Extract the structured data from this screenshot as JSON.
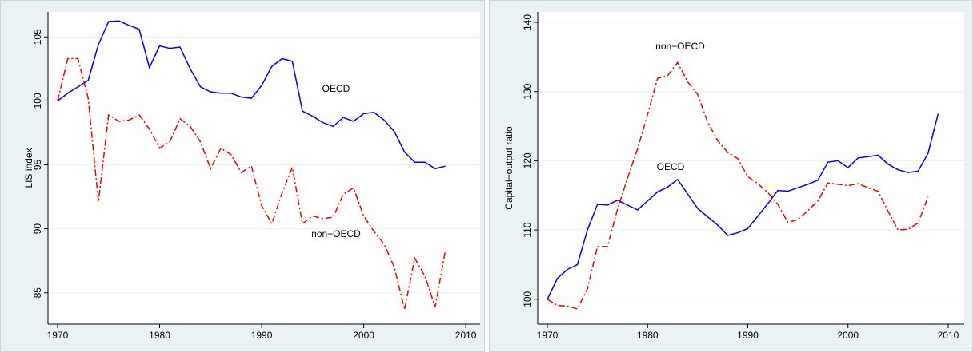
{
  "chart_data": [
    {
      "type": "line",
      "ylabel": "LIS index",
      "xlim": [
        1969.06,
        2011.4
      ],
      "xticks": [
        1970,
        1980,
        1990,
        2000,
        2010
      ],
      "ylim": [
        82.55,
        106.95
      ],
      "yticks": [
        85,
        90,
        95,
        100,
        105
      ],
      "annotations": [
        "OECD",
        "non−OECD"
      ],
      "series": [
        {
          "name": "OECD",
          "color": "#0000ee",
          "style": "solid",
          "x": [
            1970,
            1971,
            1972,
            1973,
            1974,
            1975,
            1976,
            1977,
            1978,
            1979,
            1980,
            1981,
            1982,
            1983,
            1984,
            1985,
            1986,
            1987,
            1988,
            1989,
            1990,
            1991,
            1992,
            1993,
            1994,
            1995,
            1996,
            1997,
            1998,
            1999,
            2000,
            2001,
            2002,
            2003,
            2004,
            2005,
            2006,
            2007,
            2008
          ],
          "values": [
            100,
            100.6,
            101.1,
            101.6,
            104.4,
            106.2,
            106.25,
            105.9,
            105.6,
            102.6,
            104.3,
            104.1,
            104.2,
            102.5,
            101.1,
            100.7,
            100.6,
            100.6,
            100.3,
            100.2,
            101.2,
            102.7,
            103.3,
            103.1,
            99.2,
            98.8,
            98.3,
            98.0,
            98.7,
            98.4,
            99.0,
            99.1,
            98.5,
            97.6,
            96.0,
            95.2,
            95.2,
            94.7,
            94.9
          ]
        },
        {
          "name": "non−OECD",
          "color": "#ee0000",
          "style": "dashed",
          "x": [
            1970,
            1971,
            1972,
            1973,
            1974,
            1975,
            1976,
            1977,
            1978,
            1979,
            1980,
            1981,
            1982,
            1983,
            1984,
            1985,
            1986,
            1987,
            1988,
            1989,
            1990,
            1991,
            1992,
            1993,
            1994,
            1995,
            1996,
            1997,
            1998,
            1999,
            2000,
            2001,
            2002,
            2003,
            2004,
            2005,
            2006,
            2007,
            2008
          ],
          "values": [
            100,
            103.3,
            103.3,
            100.2,
            92.1,
            98.9,
            98.4,
            98.5,
            98.9,
            97.8,
            96.3,
            96.8,
            98.6,
            98.0,
            96.8,
            94.7,
            96.3,
            95.8,
            94.4,
            94.9,
            91.8,
            90.4,
            92.8,
            94.8,
            90.4,
            91.0,
            90.8,
            90.9,
            92.7,
            93.2,
            91.0,
            89.8,
            88.8,
            87.0,
            83.7,
            87.7,
            86.3,
            83.9,
            88.3
          ]
        }
      ]
    },
    {
      "type": "line",
      "ylabel": "Capital−output ratio",
      "xlim": [
        1969.04,
        2011.6
      ],
      "xticks": [
        1970,
        1980,
        1990,
        2000,
        2010
      ],
      "ylim": [
        96.4,
        141.5
      ],
      "yticks": [
        100,
        110,
        120,
        130,
        140
      ],
      "annotations": [
        "non−OECD",
        "OECD"
      ],
      "series": [
        {
          "name": "OECD",
          "color": "#0000ee",
          "style": "solid",
          "x": [
            1970,
            1971,
            1972,
            1973,
            1974,
            1975,
            1976,
            1977,
            1978,
            1979,
            1980,
            1981,
            1982,
            1983,
            1984,
            1985,
            1986,
            1987,
            1988,
            1989,
            1990,
            1991,
            1992,
            1993,
            1994,
            1995,
            1996,
            1997,
            1998,
            1999,
            2000,
            2001,
            2002,
            2003,
            2004,
            2005,
            2006,
            2007,
            2008,
            2009
          ],
          "values": [
            100,
            103,
            104.3,
            105,
            110,
            113.7,
            113.6,
            114.3,
            113.6,
            112.9,
            114.2,
            115.5,
            116.2,
            117.3,
            115.2,
            113.1,
            111.9,
            110.7,
            109.2,
            109.6,
            110.2,
            112,
            113.8,
            115.7,
            115.6,
            116.1,
            116.6,
            117.2,
            119.8,
            120,
            119,
            120.4,
            120.6,
            120.8,
            119.5,
            118.7,
            118.3,
            118.5,
            121.1,
            126.8
          ]
        },
        {
          "name": "non−OECD",
          "color": "#ee0000",
          "style": "dashed",
          "x": [
            1970,
            1971,
            1972,
            1973,
            1974,
            1975,
            1976,
            1977,
            1978,
            1979,
            1980,
            1981,
            1982,
            1983,
            1984,
            1985,
            1986,
            1987,
            1988,
            1989,
            1990,
            1991,
            1992,
            1993,
            1994,
            1995,
            1996,
            1997,
            1998,
            1999,
            2000,
            2001,
            2002,
            2003,
            2004,
            2005,
            2006,
            2007,
            2008
          ],
          "values": [
            100,
            99.1,
            99,
            98.6,
            101.5,
            107.6,
            107.6,
            113,
            117.5,
            121.7,
            126.7,
            131.9,
            132.3,
            134.2,
            131.4,
            129.6,
            125.6,
            122.9,
            121.2,
            120.3,
            117.7,
            116.7,
            115.4,
            113.7,
            111.1,
            111.5,
            112.8,
            114.2,
            116.8,
            116.6,
            116.4,
            116.7,
            116.1,
            115.6,
            112.7,
            110,
            110.1,
            111,
            114.8
          ]
        }
      ]
    }
  ]
}
